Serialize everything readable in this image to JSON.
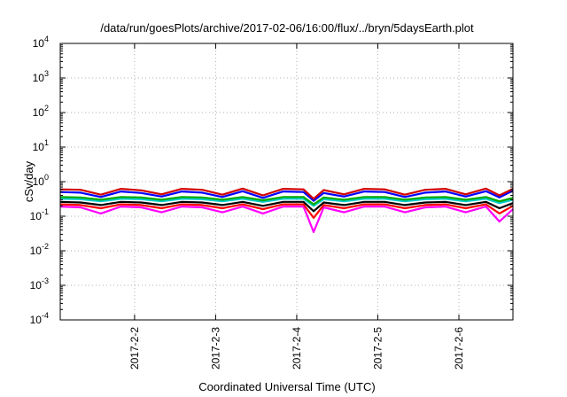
{
  "chart_data": {
    "type": "line",
    "title": "/data/run/goesPlots/archive/2017-02-06/16:00/flux/../bryn/5daysEarth.plot",
    "xlabel": "Coordinated Universal Time (UTC)",
    "ylabel": "cSv/day",
    "y_scale": "log",
    "ylim": [
      0.0001,
      10000
    ],
    "y_ticks": [
      {
        "value": 0.0001,
        "label": "10",
        "exp": "-4"
      },
      {
        "value": 0.001,
        "label": "10",
        "exp": "-3"
      },
      {
        "value": 0.01,
        "label": "10",
        "exp": "-2"
      },
      {
        "value": 0.1,
        "label": "10",
        "exp": "-1"
      },
      {
        "value": 1,
        "label": "10",
        "exp": "0"
      },
      {
        "value": 10,
        "label": "10",
        "exp": "1"
      },
      {
        "value": 100,
        "label": "10",
        "exp": "2"
      },
      {
        "value": 1000,
        "label": "10",
        "exp": "3"
      },
      {
        "value": 10000,
        "label": "10",
        "exp": "4"
      }
    ],
    "xlim": [
      "2017-02-01T02:00",
      "2017-02-06T16:00"
    ],
    "x_ticks": [
      {
        "value": "2017-02-02T00:00",
        "label": "2017-2-2"
      },
      {
        "value": "2017-02-03T00:00",
        "label": "2017-2-3"
      },
      {
        "value": "2017-02-04T00:00",
        "label": "2017-2-4"
      },
      {
        "value": "2017-02-05T00:00",
        "label": "2017-2-5"
      },
      {
        "value": "2017-02-06T00:00",
        "label": "2017-2-6"
      }
    ],
    "grid": true,
    "legend": "none",
    "series": [
      {
        "color": "#ff00ff",
        "x": [
          "2017-02-01T02:00",
          "2017-02-01T08:00",
          "2017-02-01T14:00",
          "2017-02-01T20:00",
          "2017-02-02T02:00",
          "2017-02-02T08:00",
          "2017-02-02T14:00",
          "2017-02-02T20:00",
          "2017-02-03T02:00",
          "2017-02-03T08:00",
          "2017-02-03T14:00",
          "2017-02-03T20:00",
          "2017-02-04T02:00",
          "2017-02-04T05:00",
          "2017-02-04T08:00",
          "2017-02-04T14:00",
          "2017-02-04T20:00",
          "2017-02-05T02:00",
          "2017-02-05T08:00",
          "2017-02-05T14:00",
          "2017-02-05T20:00",
          "2017-02-06T02:00",
          "2017-02-06T08:00",
          "2017-02-06T12:00",
          "2017-02-06T16:00"
        ],
        "y": [
          0.19,
          0.18,
          0.12,
          0.19,
          0.18,
          0.13,
          0.19,
          0.18,
          0.13,
          0.19,
          0.12,
          0.19,
          0.19,
          0.035,
          0.18,
          0.13,
          0.19,
          0.19,
          0.13,
          0.18,
          0.19,
          0.13,
          0.19,
          0.07,
          0.16
        ]
      },
      {
        "color": "#ff0000",
        "x": [
          "2017-02-01T02:00",
          "2017-02-01T08:00",
          "2017-02-01T14:00",
          "2017-02-01T20:00",
          "2017-02-02T02:00",
          "2017-02-02T08:00",
          "2017-02-02T14:00",
          "2017-02-02T20:00",
          "2017-02-03T02:00",
          "2017-02-03T08:00",
          "2017-02-03T14:00",
          "2017-02-03T20:00",
          "2017-02-04T02:00",
          "2017-02-04T05:00",
          "2017-02-04T08:00",
          "2017-02-04T14:00",
          "2017-02-04T20:00",
          "2017-02-05T02:00",
          "2017-02-05T08:00",
          "2017-02-05T14:00",
          "2017-02-05T20:00",
          "2017-02-06T02:00",
          "2017-02-06T08:00",
          "2017-02-06T12:00",
          "2017-02-06T16:00"
        ],
        "y": [
          0.22,
          0.21,
          0.17,
          0.22,
          0.21,
          0.17,
          0.22,
          0.21,
          0.17,
          0.22,
          0.16,
          0.22,
          0.22,
          0.09,
          0.21,
          0.17,
          0.22,
          0.22,
          0.17,
          0.21,
          0.22,
          0.17,
          0.22,
          0.12,
          0.2
        ]
      },
      {
        "color": "#000000",
        "x": [
          "2017-02-01T02:00",
          "2017-02-01T08:00",
          "2017-02-01T14:00",
          "2017-02-01T20:00",
          "2017-02-02T02:00",
          "2017-02-02T08:00",
          "2017-02-02T14:00",
          "2017-02-02T20:00",
          "2017-02-03T02:00",
          "2017-02-03T08:00",
          "2017-02-03T14:00",
          "2017-02-03T20:00",
          "2017-02-04T02:00",
          "2017-02-04T05:00",
          "2017-02-04T08:00",
          "2017-02-04T14:00",
          "2017-02-04T20:00",
          "2017-02-05T02:00",
          "2017-02-05T08:00",
          "2017-02-05T14:00",
          "2017-02-05T20:00",
          "2017-02-06T02:00",
          "2017-02-06T08:00",
          "2017-02-06T12:00",
          "2017-02-06T16:00"
        ],
        "y": [
          0.26,
          0.25,
          0.21,
          0.26,
          0.25,
          0.21,
          0.26,
          0.25,
          0.21,
          0.26,
          0.2,
          0.26,
          0.26,
          0.14,
          0.25,
          0.21,
          0.26,
          0.26,
          0.21,
          0.25,
          0.26,
          0.21,
          0.26,
          0.17,
          0.24
        ]
      },
      {
        "color": "#00cccc",
        "x": [
          "2017-02-01T02:00",
          "2017-02-01T08:00",
          "2017-02-01T14:00",
          "2017-02-01T20:00",
          "2017-02-02T02:00",
          "2017-02-02T08:00",
          "2017-02-02T14:00",
          "2017-02-02T20:00",
          "2017-02-03T02:00",
          "2017-02-03T08:00",
          "2017-02-03T14:00",
          "2017-02-03T20:00",
          "2017-02-04T02:00",
          "2017-02-04T05:00",
          "2017-02-04T08:00",
          "2017-02-04T14:00",
          "2017-02-04T20:00",
          "2017-02-05T02:00",
          "2017-02-05T08:00",
          "2017-02-05T14:00",
          "2017-02-05T20:00",
          "2017-02-06T02:00",
          "2017-02-06T08:00",
          "2017-02-06T12:00",
          "2017-02-06T16:00"
        ],
        "y": [
          0.32,
          0.31,
          0.27,
          0.32,
          0.31,
          0.27,
          0.32,
          0.31,
          0.27,
          0.32,
          0.26,
          0.32,
          0.32,
          0.2,
          0.31,
          0.27,
          0.32,
          0.32,
          0.27,
          0.31,
          0.32,
          0.27,
          0.32,
          0.24,
          0.3
        ]
      },
      {
        "color": "#00aa00",
        "x": [
          "2017-02-01T02:00",
          "2017-02-01T08:00",
          "2017-02-01T14:00",
          "2017-02-01T20:00",
          "2017-02-02T02:00",
          "2017-02-02T08:00",
          "2017-02-02T14:00",
          "2017-02-02T20:00",
          "2017-02-03T02:00",
          "2017-02-03T08:00",
          "2017-02-03T14:00",
          "2017-02-03T20:00",
          "2017-02-04T02:00",
          "2017-02-04T05:00",
          "2017-02-04T08:00",
          "2017-02-04T14:00",
          "2017-02-04T20:00",
          "2017-02-05T02:00",
          "2017-02-05T08:00",
          "2017-02-05T14:00",
          "2017-02-05T20:00",
          "2017-02-06T02:00",
          "2017-02-06T08:00",
          "2017-02-06T12:00",
          "2017-02-06T16:00"
        ],
        "y": [
          0.36,
          0.35,
          0.3,
          0.36,
          0.35,
          0.3,
          0.36,
          0.35,
          0.3,
          0.36,
          0.29,
          0.36,
          0.36,
          0.22,
          0.35,
          0.3,
          0.36,
          0.36,
          0.3,
          0.35,
          0.36,
          0.3,
          0.36,
          0.27,
          0.34
        ]
      },
      {
        "color": "#0000ff",
        "x": [
          "2017-02-01T02:00",
          "2017-02-01T08:00",
          "2017-02-01T14:00",
          "2017-02-01T20:00",
          "2017-02-02T02:00",
          "2017-02-02T08:00",
          "2017-02-02T14:00",
          "2017-02-02T20:00",
          "2017-02-03T02:00",
          "2017-02-03T08:00",
          "2017-02-03T14:00",
          "2017-02-03T20:00",
          "2017-02-04T02:00",
          "2017-02-04T05:00",
          "2017-02-04T08:00",
          "2017-02-04T14:00",
          "2017-02-04T20:00",
          "2017-02-05T02:00",
          "2017-02-05T08:00",
          "2017-02-05T14:00",
          "2017-02-05T20:00",
          "2017-02-06T02:00",
          "2017-02-06T08:00",
          "2017-02-06T12:00",
          "2017-02-06T16:00"
        ],
        "y": [
          0.5,
          0.48,
          0.36,
          0.52,
          0.47,
          0.37,
          0.52,
          0.48,
          0.36,
          0.53,
          0.34,
          0.52,
          0.5,
          0.28,
          0.47,
          0.37,
          0.52,
          0.5,
          0.36,
          0.48,
          0.52,
          0.37,
          0.53,
          0.35,
          0.55
        ]
      },
      {
        "color": "#d00000",
        "x": [
          "2017-02-01T02:00",
          "2017-02-01T08:00",
          "2017-02-01T14:00",
          "2017-02-01T20:00",
          "2017-02-02T02:00",
          "2017-02-02T08:00",
          "2017-02-02T14:00",
          "2017-02-02T20:00",
          "2017-02-03T02:00",
          "2017-02-03T08:00",
          "2017-02-03T14:00",
          "2017-02-03T20:00",
          "2017-02-04T02:00",
          "2017-02-04T05:00",
          "2017-02-04T08:00",
          "2017-02-04T14:00",
          "2017-02-04T20:00",
          "2017-02-05T02:00",
          "2017-02-05T08:00",
          "2017-02-05T14:00",
          "2017-02-05T20:00",
          "2017-02-06T02:00",
          "2017-02-06T08:00",
          "2017-02-06T12:00",
          "2017-02-06T16:00"
        ],
        "y": [
          0.6,
          0.58,
          0.42,
          0.62,
          0.56,
          0.43,
          0.62,
          0.58,
          0.42,
          0.63,
          0.4,
          0.62,
          0.6,
          0.32,
          0.57,
          0.43,
          0.62,
          0.6,
          0.42,
          0.58,
          0.62,
          0.43,
          0.63,
          0.4,
          0.62
        ]
      }
    ]
  }
}
